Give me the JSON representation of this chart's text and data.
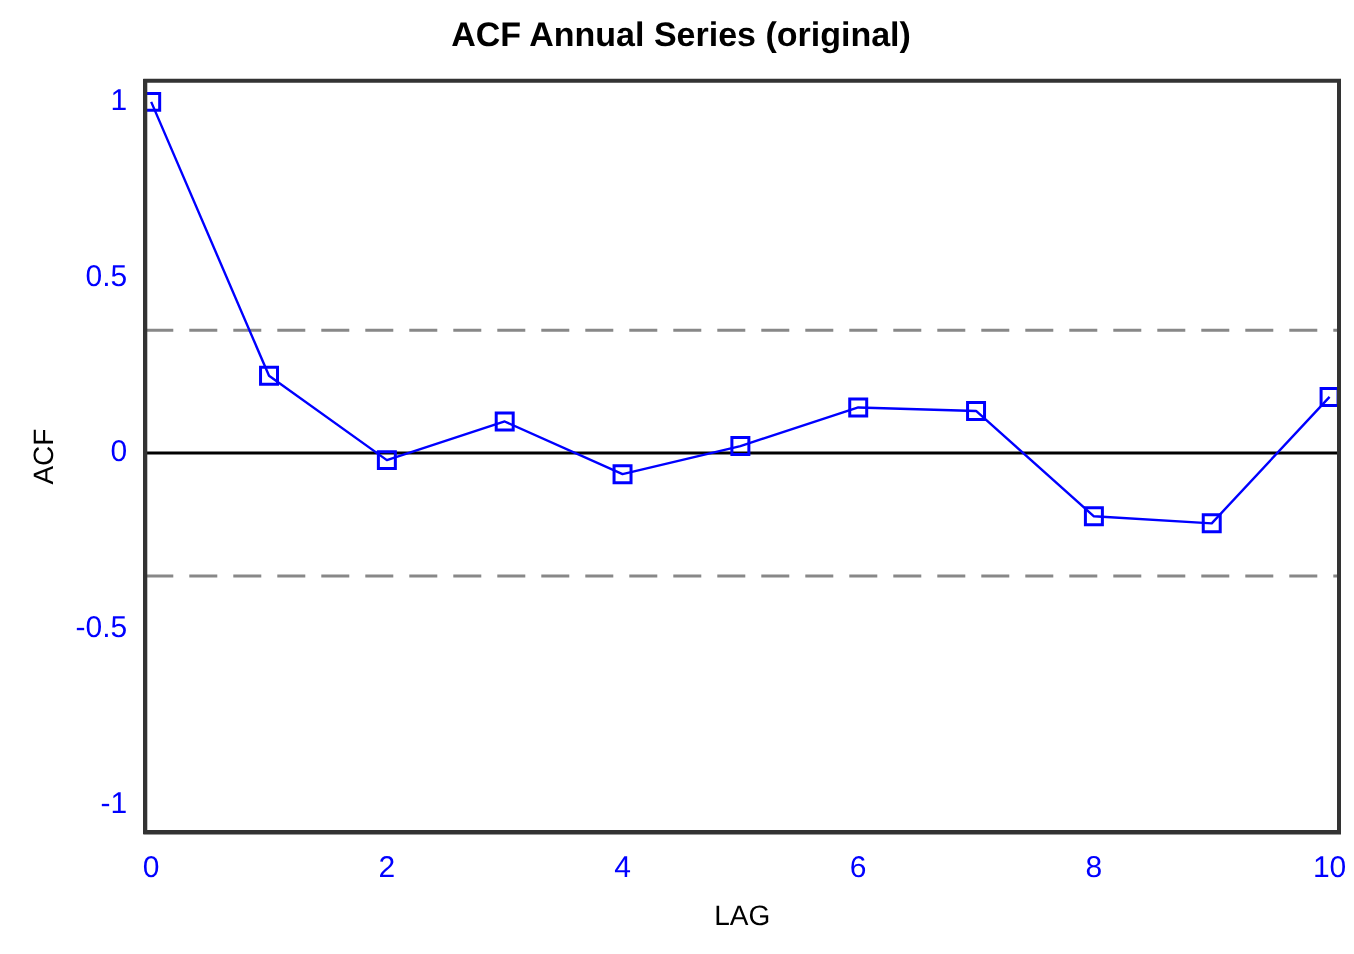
{
  "chart_data": {
    "type": "line",
    "title": "ACF Annual Series (original)",
    "xlabel": "LAG",
    "ylabel": "ACF",
    "x": [
      0,
      1,
      2,
      3,
      4,
      5,
      6,
      7,
      8,
      9,
      10
    ],
    "series": [
      {
        "color": "#0000ff",
        "values": [
          1,
          0.22,
          -0.02,
          0.09,
          -0.06,
          0.02,
          0.13,
          0.12,
          -0.18,
          -0.2,
          0.16
        ]
      }
    ],
    "xlim": [
      -0.05,
      10.08
    ],
    "xticks": [
      0,
      2,
      4,
      6,
      8,
      10
    ],
    "ylim": [
      -1.08,
      1.06
    ],
    "yticks": [
      -1,
      -0.5,
      0,
      0.5,
      1
    ],
    "ref_lines": [
      {
        "axis": "y",
        "value": 0,
        "color": "#000000",
        "line_style": "solid"
      },
      {
        "axis": "y",
        "value": 0.35,
        "color": "#888888",
        "line_style": "dashed"
      },
      {
        "axis": "y",
        "value": -0.35,
        "color": "#888888",
        "line_style": "dashed"
      }
    ],
    "grid": false,
    "legend": false,
    "marker": "square",
    "line_style": "solid"
  }
}
